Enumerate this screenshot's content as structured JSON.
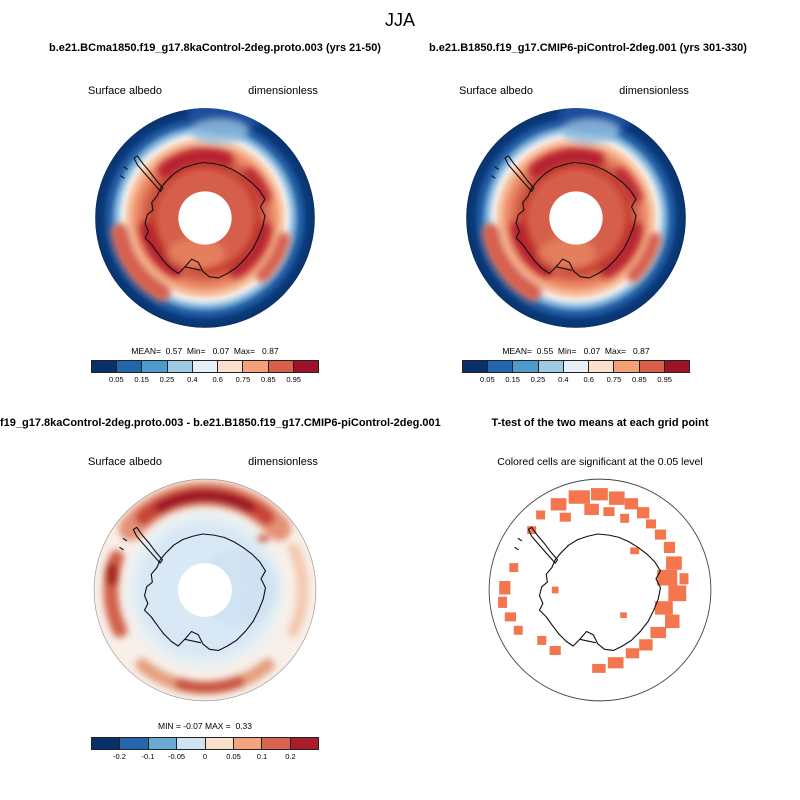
{
  "title": "JJA",
  "panels": {
    "top_left": {
      "title": "b.e21.BCma1850.f19_g17.8kaControl-2deg.proto.003 (yrs 21-50)",
      "var_label": "Surface albedo",
      "units_label": "dimensionless",
      "stats": "MEAN=  0.57  Min=   0.07  Max=   0.87"
    },
    "top_right": {
      "title": "b.e21.B1850.f19_g17.CMIP6-piControl-2deg.001 (yrs 301-330)",
      "var_label": "Surface albedo",
      "units_label": "dimensionless",
      "stats": "MEAN=  0.55  Min=   0.07  Max=   0.87"
    },
    "bottom_left": {
      "title": "f19_g17.8kaControl-2deg.proto.003 - b.e21.B1850.f19_g17.CMIP6-piControl-2deg.001",
      "var_label": "Surface albedo",
      "units_label": "dimensionless",
      "stats": "MIN = -0.07 MAX =  0.33"
    },
    "bottom_right": {
      "title": "T-test of the two means at each grid point",
      "note": "Colored cells are significant at the 0.05 level"
    }
  },
  "colorbars": {
    "albedo": {
      "colors": [
        "#08306b",
        "#2166ac",
        "#4f9bcb",
        "#9ec9e2",
        "#e6eff7",
        "#fcdfcc",
        "#f4a179",
        "#d75f4c",
        "#9e1228"
      ],
      "labels": [
        "0.05",
        "0.15",
        "0.25",
        "0.4",
        "0.6",
        "0.75",
        "0.85",
        "0.95"
      ]
    },
    "diff": {
      "colors": [
        "#08306b",
        "#2467ad",
        "#6aaad2",
        "#cfe3f2",
        "#fbdfcd",
        "#f3a47c",
        "#d96550",
        "#a91c2c"
      ],
      "labels": [
        "-0.2",
        "-0.1",
        "-0.05",
        "0",
        "0.05",
        "0.1",
        "0.2"
      ]
    }
  },
  "chart_data": [
    {
      "type": "heatmap",
      "subtype": "south-polar-stereographic-contour-map",
      "season": "JJA",
      "title": "b.e21.BCma1850.f19_g17.8kaControl-2deg.proto.003 (yrs 21-50)",
      "variable": "Surface albedo",
      "units": "dimensionless",
      "stats": {
        "mean": 0.57,
        "min": 0.07,
        "max": 0.87
      },
      "contour_levels": [
        0.05,
        0.15,
        0.25,
        0.4,
        0.6,
        0.75,
        0.85,
        0.95
      ],
      "palette": [
        "#08306b",
        "#2166ac",
        "#4f9bcb",
        "#9ec9e2",
        "#e6eff7",
        "#fcdfcc",
        "#f4a179",
        "#d75f4c",
        "#9e1228"
      ],
      "legend_position": "bottom"
    },
    {
      "type": "heatmap",
      "subtype": "south-polar-stereographic-contour-map",
      "season": "JJA",
      "title": "b.e21.B1850.f19_g17.CMIP6-piControl-2deg.001 (yrs 301-330)",
      "variable": "Surface albedo",
      "units": "dimensionless",
      "stats": {
        "mean": 0.55,
        "min": 0.07,
        "max": 0.87
      },
      "contour_levels": [
        0.05,
        0.15,
        0.25,
        0.4,
        0.6,
        0.75,
        0.85,
        0.95
      ],
      "palette": [
        "#08306b",
        "#2166ac",
        "#4f9bcb",
        "#9ec9e2",
        "#e6eff7",
        "#fcdfcc",
        "#f4a179",
        "#d75f4c",
        "#9e1228"
      ],
      "legend_position": "bottom"
    },
    {
      "type": "heatmap",
      "subtype": "south-polar-stereographic-difference-map",
      "title": "f19_g17.8kaControl-2deg.proto.003 - b.e21.B1850.f19_g17.CMIP6-piControl-2deg.001",
      "variable": "Surface albedo",
      "units": "dimensionless",
      "stats": {
        "min": -0.07,
        "max": 0.33
      },
      "contour_levels": [
        -0.2,
        -0.1,
        -0.05,
        0,
        0.05,
        0.1,
        0.2
      ],
      "palette": [
        "#08306b",
        "#2467ad",
        "#6aaad2",
        "#cfe3f2",
        "#fbdfcd",
        "#f3a47c",
        "#d96550",
        "#a91c2c"
      ],
      "legend_position": "bottom"
    },
    {
      "type": "heatmap",
      "subtype": "south-polar-stereographic-significance-map",
      "title": "T-test of the two means at each grid point",
      "note": "Colored cells are significant at the 0.05 level",
      "significance_level": 0.05,
      "significant_color": "#f4764f"
    }
  ]
}
